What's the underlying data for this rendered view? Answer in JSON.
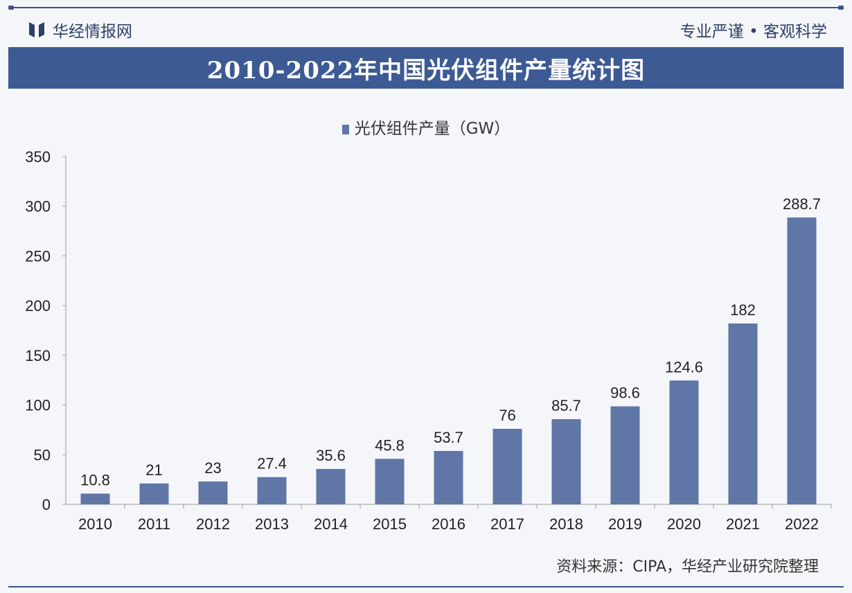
{
  "header": {
    "brand": "华经情报网",
    "slogan": "专业严谨 • 客观科学",
    "brand_icon": "book-logo-icon"
  },
  "title": "2010-2022年中国光伏组件产量统计图",
  "source": "资料来源：CIPA，华经产业研究院整理",
  "colors": {
    "bar": "#5f76a6",
    "banner": "#3d5a94",
    "accent": "#2f3f66"
  },
  "chart_data": {
    "type": "bar",
    "title": "2010-2022年中国光伏组件产量统计图",
    "categories": [
      "2010",
      "2011",
      "2012",
      "2013",
      "2014",
      "2015",
      "2016",
      "2017",
      "2018",
      "2019",
      "2020",
      "2021",
      "2022"
    ],
    "series": [
      {
        "name": "光伏组件产量（GW）",
        "values": [
          10.8,
          21,
          23,
          27.4,
          35.6,
          45.8,
          53.7,
          76,
          85.7,
          98.6,
          124.6,
          182,
          288.7
        ],
        "labels": [
          "10.8",
          "21",
          "23",
          "27.4",
          "35.6",
          "45.8",
          "53.7",
          "76",
          "85.7",
          "98.6",
          "124.6",
          "182",
          "288.7"
        ]
      }
    ],
    "yticks": [
      "0",
      "50",
      "100",
      "150",
      "200",
      "250",
      "300",
      "350"
    ],
    "ylim": [
      0,
      350
    ],
    "grid": false,
    "legend": "top-center"
  }
}
